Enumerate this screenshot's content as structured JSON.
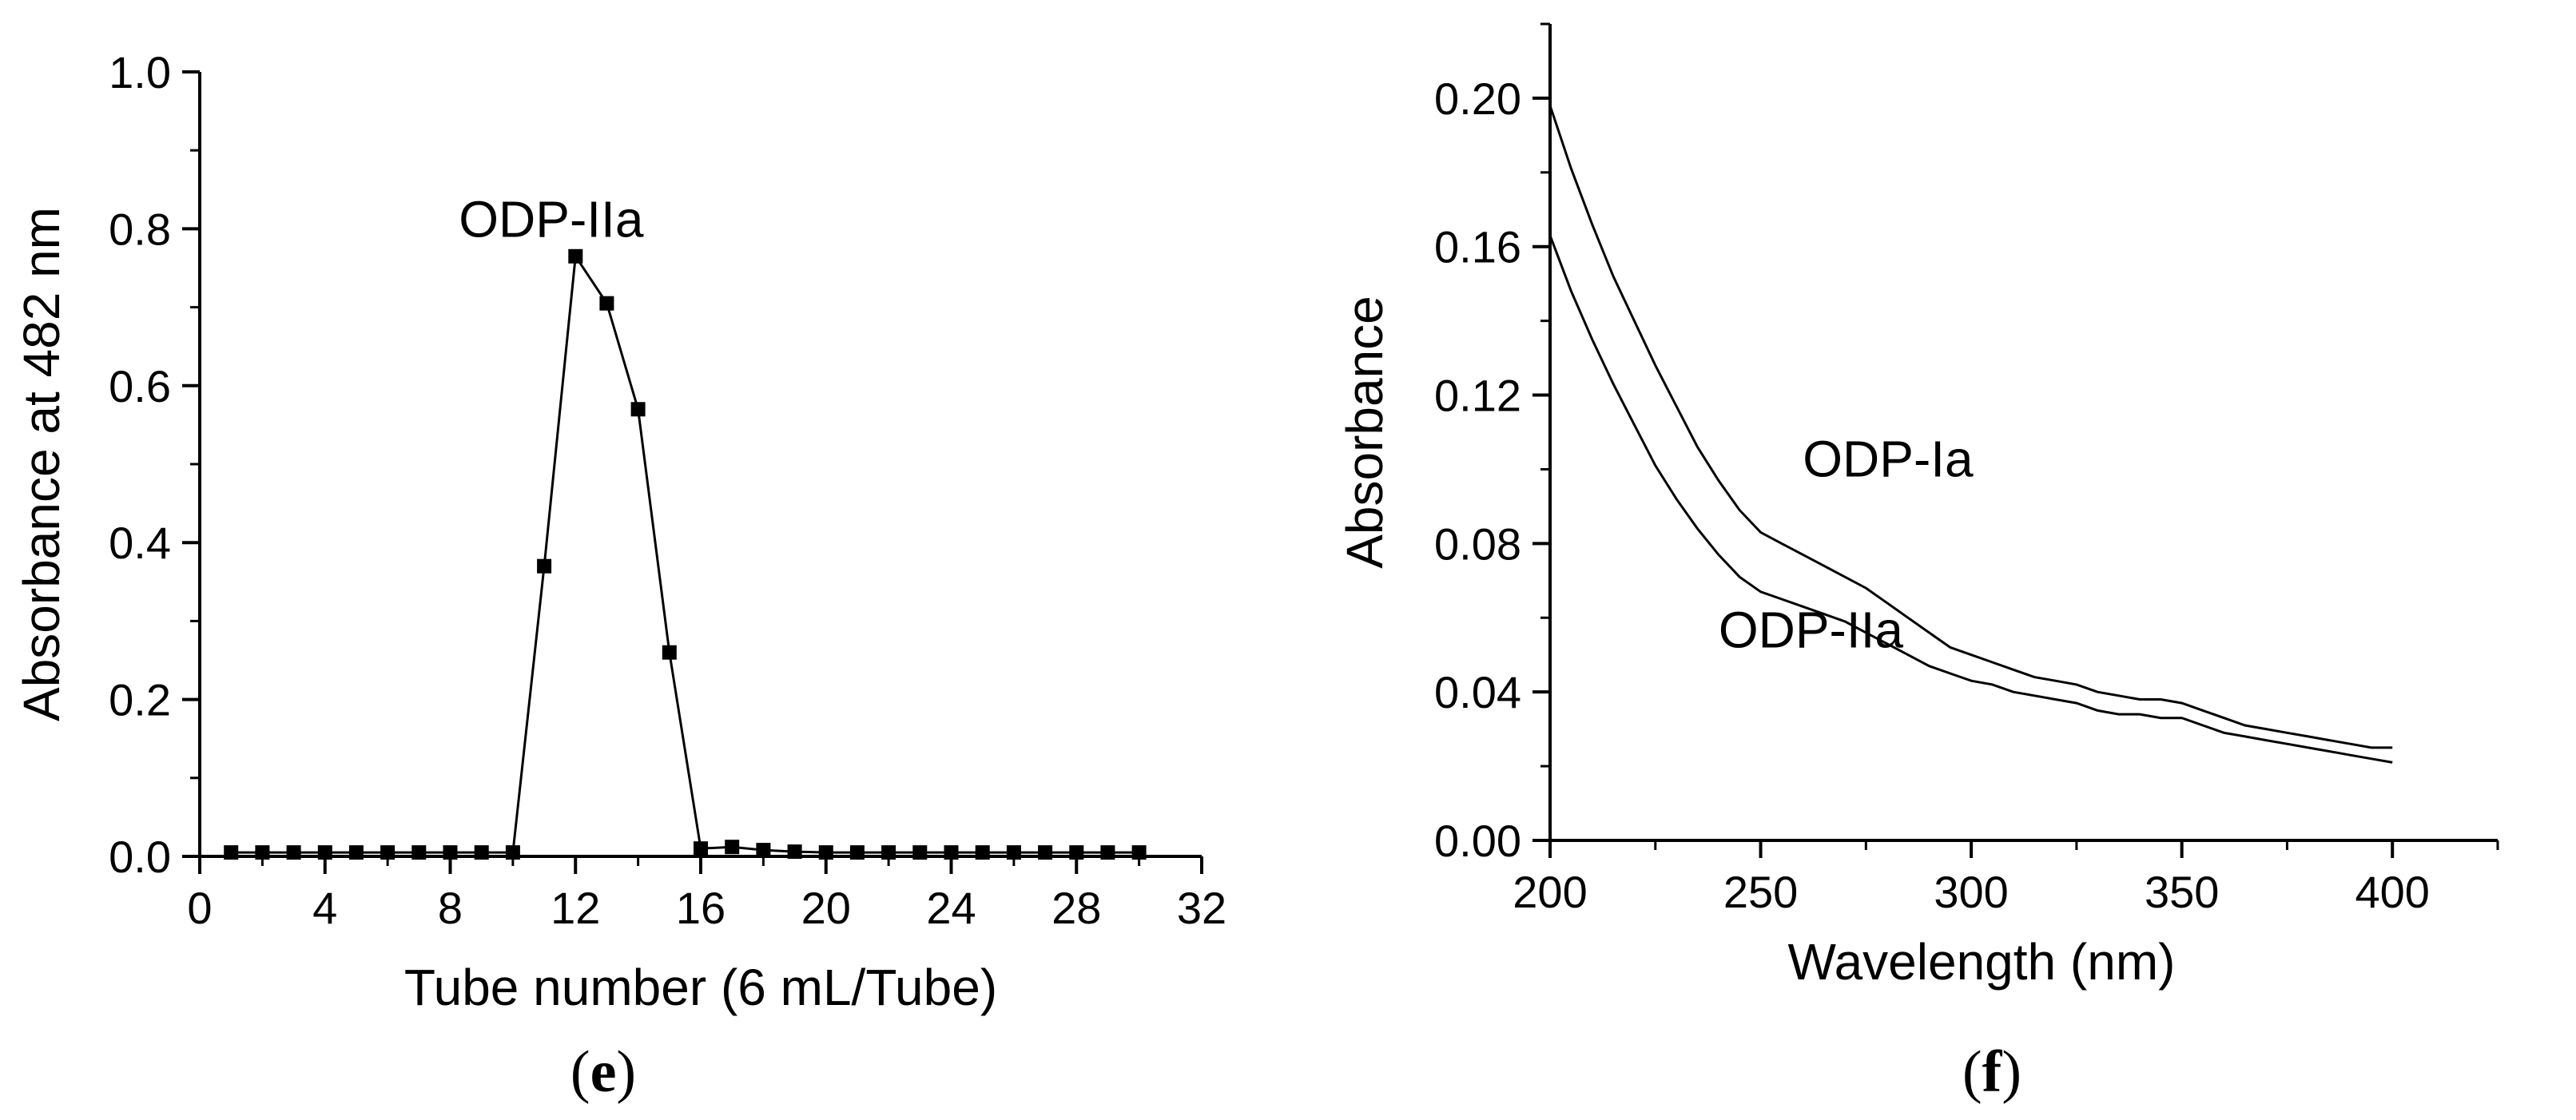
{
  "chart_data": [
    {
      "type": "line",
      "panel_label": "e",
      "title": "",
      "xlabel": "Tube number (6 mL/Tube)",
      "ylabel": "Absorbance at 482 nm",
      "xlim": [
        0,
        32
      ],
      "ylim": [
        0,
        1.0
      ],
      "xticks": [
        "0",
        "4",
        "8",
        "12",
        "16",
        "20",
        "24",
        "28",
        "32"
      ],
      "yticks": [
        "0.0",
        "0.2",
        "0.4",
        "0.6",
        "0.8",
        "1.0"
      ],
      "grid": false,
      "marker": "square",
      "annotation": {
        "text": "ODP-IIa",
        "x": 12.5,
        "y": 0.8
      },
      "series": [
        {
          "name": "ODP-IIa",
          "x": [
            1,
            2,
            3,
            4,
            5,
            6,
            7,
            8,
            9,
            10,
            11,
            12,
            13,
            14,
            15,
            16,
            17,
            18,
            19,
            20,
            21,
            22,
            23,
            24,
            25,
            26,
            27,
            28,
            29,
            30
          ],
          "values": [
            0.005,
            0.005,
            0.005,
            0.005,
            0.005,
            0.005,
            0.005,
            0.005,
            0.005,
            0.005,
            0.37,
            0.765,
            0.705,
            0.57,
            0.26,
            0.01,
            0.012,
            0.008,
            0.006,
            0.005,
            0.005,
            0.005,
            0.005,
            0.005,
            0.005,
            0.005,
            0.005,
            0.005,
            0.005,
            0.005
          ]
        }
      ]
    },
    {
      "type": "line",
      "panel_label": "f",
      "title": "",
      "xlabel": "Wavelength (nm)",
      "ylabel": "Absorbance",
      "xlim": [
        200,
        425
      ],
      "ylim": [
        0.0,
        0.22
      ],
      "xticks": [
        "200",
        "250",
        "300",
        "350",
        "400"
      ],
      "yticks": [
        "0.00",
        "0.04",
        "0.08",
        "0.12",
        "0.16",
        "0.20"
      ],
      "grid": false,
      "series": [
        {
          "name": "ODP-Ia",
          "label_pos": {
            "x": 260,
            "y": 0.098
          },
          "x": [
            200,
            205,
            210,
            215,
            220,
            225,
            230,
            235,
            240,
            245,
            250,
            255,
            260,
            265,
            270,
            275,
            280,
            285,
            290,
            295,
            300,
            305,
            310,
            315,
            320,
            325,
            330,
            335,
            340,
            345,
            350,
            355,
            360,
            365,
            370,
            375,
            380,
            385,
            390,
            395,
            400
          ],
          "values": [
            0.198,
            0.181,
            0.166,
            0.152,
            0.14,
            0.128,
            0.117,
            0.106,
            0.097,
            0.089,
            0.083,
            0.08,
            0.077,
            0.074,
            0.071,
            0.068,
            0.064,
            0.06,
            0.056,
            0.052,
            0.05,
            0.048,
            0.046,
            0.044,
            0.043,
            0.042,
            0.04,
            0.039,
            0.038,
            0.038,
            0.037,
            0.035,
            0.033,
            0.031,
            0.03,
            0.029,
            0.028,
            0.027,
            0.026,
            0.025,
            0.025
          ]
        },
        {
          "name": "ODP-IIa",
          "label_pos": {
            "x": 240,
            "y": 0.052
          },
          "x": [
            200,
            205,
            210,
            215,
            220,
            225,
            230,
            235,
            240,
            245,
            250,
            255,
            260,
            265,
            270,
            275,
            280,
            285,
            290,
            295,
            300,
            305,
            310,
            315,
            320,
            325,
            330,
            335,
            340,
            345,
            350,
            355,
            360,
            365,
            370,
            375,
            380,
            385,
            390,
            395,
            400
          ],
          "values": [
            0.163,
            0.148,
            0.135,
            0.123,
            0.112,
            0.101,
            0.092,
            0.084,
            0.077,
            0.071,
            0.067,
            0.065,
            0.063,
            0.061,
            0.059,
            0.056,
            0.053,
            0.05,
            0.047,
            0.045,
            0.043,
            0.042,
            0.04,
            0.039,
            0.038,
            0.037,
            0.035,
            0.034,
            0.034,
            0.033,
            0.033,
            0.031,
            0.029,
            0.028,
            0.027,
            0.026,
            0.025,
            0.024,
            0.023,
            0.022,
            0.021
          ]
        }
      ]
    }
  ]
}
